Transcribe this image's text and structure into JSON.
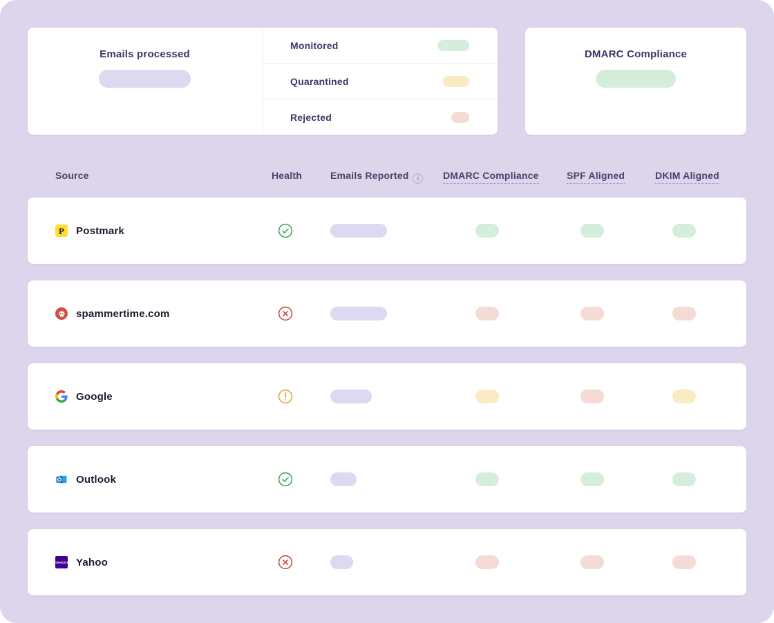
{
  "page": {
    "background": "#ddd5ec"
  },
  "colors": {
    "green": "#d5eddb",
    "yellow": "#faebc4",
    "red": "#f5dbd5",
    "purple": "#ded8f0",
    "health_ok": "#33a05b",
    "health_bad": "#c3473c",
    "health_warn": "#dfa230"
  },
  "cards": {
    "emails_processed": {
      "title": "Emails processed",
      "skeleton_color": "purple"
    },
    "breakdown": [
      {
        "label": "Monitored",
        "status": "green",
        "pill_width": 46
      },
      {
        "label": "Quarantined",
        "status": "yellow",
        "pill_width": 38
      },
      {
        "label": "Rejected",
        "status": "red",
        "pill_width": 26
      }
    ],
    "dmarc_compliance": {
      "title": "DMARC Compliance",
      "skeleton_color": "green"
    }
  },
  "table": {
    "headers": {
      "source": "Source",
      "health": "Health",
      "emails_reported": "Emails Reported",
      "emails_reported_info": "i",
      "dmarc": "DMARC Compliance",
      "spf": "SPF Aligned",
      "dkim": "DKIM Aligned"
    },
    "rows": [
      {
        "source": "Postmark",
        "icon": "postmark",
        "icon_text": "P",
        "health": "ok",
        "emails_pill_width": 82,
        "dmarc": "green",
        "spf": "green",
        "dkim": "green"
      },
      {
        "source": "spammertime.com",
        "icon": "spammer",
        "icon_text": "",
        "health": "bad",
        "emails_pill_width": 82,
        "dmarc": "red",
        "spf": "red",
        "dkim": "red"
      },
      {
        "source": "Google",
        "icon": "google",
        "icon_text": "",
        "health": "warn",
        "emails_pill_width": 60,
        "dmarc": "yellow",
        "spf": "red",
        "dkim": "yellow"
      },
      {
        "source": "Outlook",
        "icon": "outlook",
        "icon_text": "",
        "health": "ok",
        "emails_pill_width": 38,
        "dmarc": "green",
        "spf": "green",
        "dkim": "green"
      },
      {
        "source": "Yahoo",
        "icon": "yahoo",
        "icon_text": "YAHOO!",
        "health": "bad",
        "emails_pill_width": 33,
        "dmarc": "red",
        "spf": "red",
        "dkim": "red"
      }
    ]
  }
}
